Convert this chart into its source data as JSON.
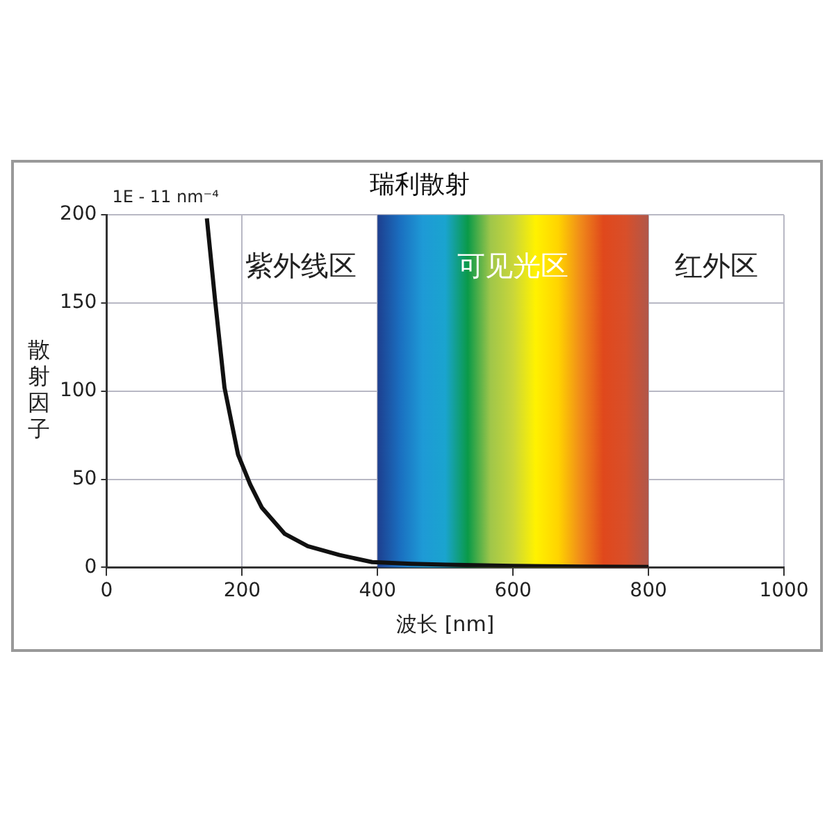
{
  "chart_data": {
    "type": "line",
    "title": "瑞利散射",
    "xlabel": "波长 [nm]",
    "ylabel": "散射因子",
    "annotations": [
      "1E - 11 nm⁻⁴",
      "紫外线区",
      "红外区"
    ],
    "series": [
      {
        "color": "#111111",
        "x": [
          148,
          160,
          174,
          194,
          212,
          229,
          263,
          297,
          344,
          392,
          450,
          500,
          600,
          700,
          800
        ],
        "values": [
          198,
          152,
          102,
          64,
          47,
          34,
          19,
          12,
          7,
          3,
          2,
          1.5,
          0.8,
          0.5,
          0.3
        ]
      }
    ],
    "bands": [
      {
        "axis": "x",
        "from": 400,
        "to": 800,
        "label": "可见光区"
      }
    ],
    "xlim": [
      0,
      1000
    ],
    "xticks": [
      0,
      200,
      400,
      600,
      800,
      1000
    ],
    "ylim": [
      0,
      200
    ],
    "yticks": [
      0,
      50,
      100,
      150,
      200
    ],
    "grid": true,
    "legend": false,
    "marker": "none",
    "line_style": "solid"
  }
}
